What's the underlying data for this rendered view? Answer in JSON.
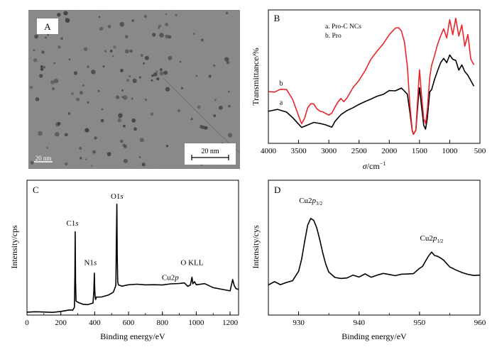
{
  "panel_a": {
    "label": "A",
    "scale_bar_label": "20 nm",
    "inset_scale_bar_label": "20 nm",
    "colors": {
      "background": "#8f8f8f",
      "dots": "#3d3d3d"
    }
  },
  "chart_data": [
    {
      "panel": "B",
      "type": "line",
      "xlabel_prefix": "σ",
      "xlabel_suffix": "/cm",
      "xlabel_sup": "−1",
      "ylabel": "Transmittance/%",
      "xlim": [
        4000,
        500
      ],
      "x_ticks": [
        4000,
        3500,
        3000,
        2500,
        2000,
        1500,
        1000,
        500
      ],
      "legend": [
        "a. Pro-C NCs",
        "b. Pro"
      ],
      "series": [
        {
          "name": "a",
          "color": "#000000",
          "x": [
            4000,
            3850,
            3700,
            3600,
            3450,
            3350,
            3250,
            3150,
            3050,
            2950,
            2900,
            2800,
            2700,
            2600,
            2500,
            2400,
            2300,
            2200,
            2100,
            2000,
            1900,
            1800,
            1750,
            1700,
            1660,
            1620,
            1600,
            1560,
            1520,
            1500,
            1470,
            1430,
            1400,
            1370,
            1330,
            1300,
            1250,
            1200,
            1150,
            1100,
            1050,
            1000,
            950,
            900,
            850,
            800,
            750,
            700,
            650,
            600
          ],
          "y": [
            0.2,
            0.21,
            0.2,
            0.16,
            0.08,
            0.09,
            0.12,
            0.11,
            0.09,
            0.08,
            0.12,
            0.17,
            0.2,
            0.23,
            0.26,
            0.28,
            0.3,
            0.32,
            0.34,
            0.36,
            0.37,
            0.38,
            0.37,
            0.34,
            0.2,
            0.05,
            0.02,
            0.05,
            0.3,
            0.39,
            0.25,
            0.1,
            0.07,
            0.15,
            0.35,
            0.38,
            0.45,
            0.52,
            0.58,
            0.62,
            0.58,
            0.64,
            0.61,
            0.6,
            0.53,
            0.56,
            0.51,
            0.48,
            0.44,
            0.4
          ]
        },
        {
          "name": "b",
          "color": "#e8262a",
          "x": [
            4000,
            3900,
            3800,
            3700,
            3600,
            3500,
            3450,
            3400,
            3350,
            3300,
            3250,
            3200,
            3150,
            3100,
            3050,
            3000,
            2950,
            2900,
            2850,
            2800,
            2750,
            2700,
            2600,
            2500,
            2400,
            2300,
            2200,
            2100,
            2000,
            1900,
            1850,
            1800,
            1750,
            1700,
            1660,
            1620,
            1600,
            1560,
            1520,
            1500,
            1470,
            1430,
            1400,
            1370,
            1330,
            1300,
            1250,
            1200,
            1150,
            1100,
            1050,
            1000,
            950,
            900,
            850,
            800,
            750,
            700,
            650,
            600
          ],
          "y": [
            0.36,
            0.36,
            0.37,
            0.37,
            0.3,
            0.16,
            0.11,
            0.14,
            0.23,
            0.27,
            0.26,
            0.23,
            0.2,
            0.2,
            0.19,
            0.17,
            0.18,
            0.24,
            0.28,
            0.3,
            0.28,
            0.3,
            0.38,
            0.45,
            0.53,
            0.62,
            0.68,
            0.74,
            0.8,
            0.85,
            0.86,
            0.84,
            0.75,
            0.55,
            0.25,
            0.06,
            0.03,
            0.06,
            0.38,
            0.52,
            0.35,
            0.14,
            0.1,
            0.22,
            0.48,
            0.57,
            0.65,
            0.73,
            0.8,
            0.86,
            0.78,
            0.92,
            0.8,
            0.94,
            0.79,
            0.88,
            0.72,
            0.8,
            0.62,
            0.56
          ]
        }
      ]
    },
    {
      "panel": "C",
      "type": "line",
      "xlabel": "Binding energy/eV",
      "ylabel": "Intensity/cps",
      "xlim": [
        0,
        1250
      ],
      "x_ticks": [
        0,
        200,
        400,
        600,
        800,
        1000,
        1200
      ],
      "annotations": [
        {
          "text": "C1",
          "italic": "s",
          "x": 285,
          "y": 0.62
        },
        {
          "text": "N1",
          "italic": "s",
          "x": 400,
          "y": 0.33
        },
        {
          "text": "O1",
          "italic": "s",
          "x": 532,
          "y": 0.82
        },
        {
          "text": "O KLL",
          "italic": "",
          "x": 975,
          "y": 0.33
        },
        {
          "text": "Cu2",
          "italic": "p",
          "x": 930,
          "y": 0.24
        }
      ],
      "series": [
        {
          "name": "",
          "color": "#000000",
          "x": [
            0,
            50,
            100,
            150,
            200,
            250,
            270,
            280,
            283,
            285,
            287,
            290,
            300,
            330,
            360,
            390,
            395,
            398,
            400,
            402,
            405,
            410,
            440,
            480,
            510,
            525,
            528,
            531,
            533,
            536,
            540,
            560,
            600,
            650,
            700,
            750,
            800,
            850,
            900,
            930,
            950,
            965,
            975,
            980,
            990,
            1000,
            1050,
            1100,
            1150,
            1200,
            1215,
            1225,
            1235,
            1250
          ],
          "y": [
            0.02,
            0.02,
            0.025,
            0.025,
            0.03,
            0.035,
            0.04,
            0.06,
            0.3,
            0.62,
            0.25,
            0.1,
            0.09,
            0.08,
            0.08,
            0.09,
            0.18,
            0.31,
            0.2,
            0.14,
            0.12,
            0.13,
            0.14,
            0.15,
            0.17,
            0.22,
            0.55,
            0.82,
            0.45,
            0.25,
            0.22,
            0.22,
            0.23,
            0.23,
            0.22,
            0.23,
            0.22,
            0.23,
            0.23,
            0.24,
            0.21,
            0.22,
            0.28,
            0.23,
            0.25,
            0.22,
            0.23,
            0.2,
            0.19,
            0.18,
            0.26,
            0.22,
            0.2,
            0.19
          ]
        }
      ]
    },
    {
      "panel": "D",
      "type": "line",
      "xlabel": "Binding energy/eV",
      "ylabel": "Intensity/cys",
      "xlim": [
        925,
        960
      ],
      "x_ticks": [
        930,
        940,
        950,
        960
      ],
      "annotations": [
        {
          "text": "Cu2",
          "italic": "p",
          "sub": "3/2",
          "x": 932.0,
          "y": 0.8
        },
        {
          "text": "Cu2",
          "italic": "p",
          "sub": "1/2",
          "x": 952.0,
          "y": 0.52
        }
      ],
      "series": [
        {
          "name": "",
          "color": "#000000",
          "x": [
            925,
            926,
            927,
            928,
            929,
            930,
            930.5,
            931,
            931.5,
            932,
            932.5,
            933,
            933.5,
            934,
            934.5,
            935,
            936,
            937,
            938,
            939,
            940,
            941,
            942,
            943,
            944,
            945,
            946,
            947,
            948,
            949,
            950,
            950.5,
            951,
            951.5,
            952,
            952.5,
            953,
            953.5,
            954,
            955,
            956,
            957,
            958,
            959,
            960
          ],
          "y": [
            0.22,
            0.24,
            0.23,
            0.25,
            0.26,
            0.32,
            0.42,
            0.55,
            0.66,
            0.72,
            0.7,
            0.64,
            0.55,
            0.46,
            0.38,
            0.32,
            0.28,
            0.27,
            0.28,
            0.29,
            0.29,
            0.3,
            0.29,
            0.3,
            0.31,
            0.3,
            0.29,
            0.3,
            0.3,
            0.31,
            0.34,
            0.37,
            0.41,
            0.44,
            0.46,
            0.45,
            0.43,
            0.42,
            0.4,
            0.36,
            0.33,
            0.31,
            0.3,
            0.29,
            0.3
          ]
        }
      ]
    }
  ]
}
